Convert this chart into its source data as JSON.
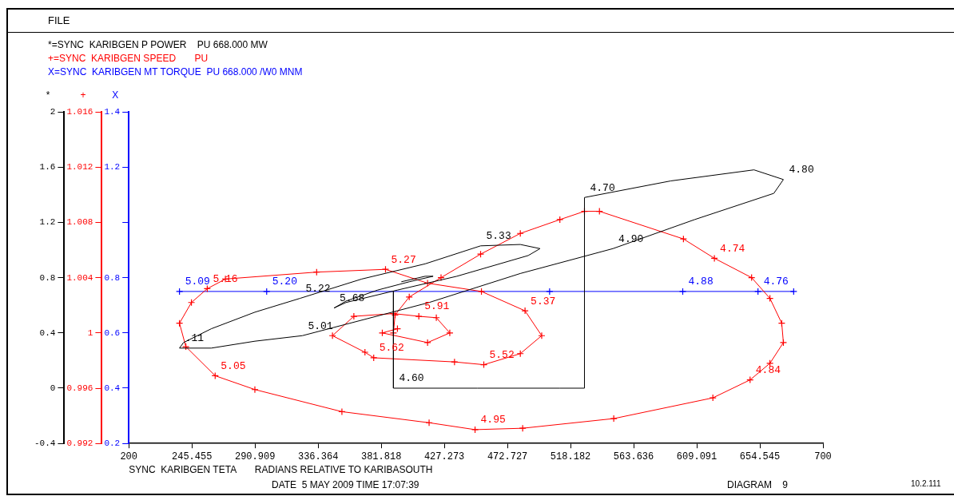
{
  "chart_data": {
    "type": "line",
    "title": "FILE",
    "xlabel": "SYNC  KARIBGEN TETA       RADIANS RELATIVE TO KARIBASOUTH",
    "ylabel": "*",
    "y2label": "+",
    "y3label": "X",
    "xlim": [
      200,
      700
    ],
    "xticks": [
      200,
      245.455,
      290.909,
      336.364,
      381.818,
      427.273,
      472.727,
      518.182,
      563.636,
      609.091,
      654.545,
      700
    ],
    "ylim": [
      -0.4,
      2
    ],
    "yticks": [
      -0.4,
      0,
      0.4,
      0.8,
      1.2,
      1.6,
      2
    ],
    "y2lim": [
      0.992,
      1.016
    ],
    "y2ticks": [
      0.992,
      0.996,
      1,
      1.004,
      1.008,
      1.012,
      1.016
    ],
    "y3lim": [
      0.2,
      1.4
    ],
    "y3ticks": [
      0.2,
      0.4,
      0.6,
      0.8,
      {
        "value": 1,
        "label": null
      },
      1.2,
      1.4
    ],
    "grid": false,
    "legend": "top left",
    "line_style": "solid",
    "series": [
      {
        "name": "*=SYNC  KARIBGEN P POWER    PU 668.000 MW",
        "color": "#000000",
        "axis": "y",
        "marker": "none",
        "x": [
          390.6,
          390.6,
          451.1,
          510.5,
          528.2,
          528.2,
          590.4,
          650.3,
          671.5,
          664.6,
          607.5,
          548.7,
          482,
          416.3,
          325,
          290.8,
          259.4,
          236.5,
          239.4,
          259.4,
          290.8,
          323.3,
          367.8,
          413.5,
          453.4,
          482,
          496.2,
          487.7,
          436.3,
          393.5,
          356.4,
          347.8,
          356.4,
          379.2,
          402,
          419.2,
          413.5,
          396.3
        ],
        "values": [
          0.7,
          0,
          0,
          0,
          0,
          1.38,
          1.5,
          1.58,
          1.51,
          1.41,
          1.22,
          1.01,
          0.83,
          0.62,
          0.38,
          0.34,
          0.29,
          0.29,
          0.33,
          0.43,
          0.55,
          0.65,
          0.79,
          0.9,
          1.03,
          1.04,
          1.01,
          0.96,
          0.81,
          0.71,
          0.62,
          0.58,
          0.63,
          0.71,
          0.77,
          0.81,
          0.81,
          0.77
        ]
      },
      {
        "name": "+=SYNC  KARIBGEN SPEED       PU",
        "color": "#ff0000",
        "axis": "y2",
        "marker": "cross",
        "x": [
          390.6,
          391.8,
          402,
          424.9,
          453.4,
          482,
          510.5,
          528.2,
          539,
          599.5,
          621.8,
          648.6,
          661.8,
          670.3,
          671.5,
          661.8,
          647.5,
          620.7,
          549.3,
          483.7,
          449.4,
          416.3,
          353.5,
          290.8,
          262.2,
          241.1,
          236.5,
          245.1,
          256.5,
          269.6,
          335.3,
          384.9,
          415.2,
          454,
          485.4,
          497.4,
          482,
          455.7,
          434.6,
          376.4,
          370.1,
          346.7,
          362.1,
          390.6,
          408.9,
          421.5,
          431.2,
          415.2,
          382.6,
          393.5
        ],
        "values": [
          1.0,
          1.0013,
          1.0026,
          1.004,
          1.0057,
          1.0072,
          1.0082,
          1.0088,
          1.0088,
          1.0068,
          1.0054,
          1.004,
          1.0025,
          1.0007,
          0.9993,
          0.9978,
          0.9966,
          0.9953,
          0.9938,
          0.9931,
          0.993,
          0.9935,
          0.9943,
          0.9959,
          0.9969,
          0.999,
          1.0007,
          1.0022,
          1.0032,
          1.0039,
          1.0044,
          1.0046,
          1.0036,
          1.003,
          1.0016,
          0.9998,
          0.9985,
          0.9977,
          0.9979,
          0.9982,
          0.9986,
          0.9998,
          1.0012,
          1.0014,
          1.0012,
          1.0011,
          1.0,
          0.9993,
          1.0,
          1.0003
        ]
      },
      {
        "name": "X=SYNC  KARIBGEN MT TORQUE  PU 668.000 /W0 MNM",
        "color": "#0000ff",
        "axis": "y3",
        "marker": "cross",
        "x": [
          236.5,
          299.3,
          503.1,
          599,
          653.2,
          678.9
        ],
        "values": [
          0.75,
          0.75,
          0.75,
          0.75,
          0.75,
          0.75
        ]
      }
    ],
    "annotations": [
      "DATE  5 MAY 2009 TIME 17:07:39",
      "DIAGRAM    9",
      "10.2.111",
      {
        "text": "4.60",
        "x": 390.6,
        "y": 0
      },
      {
        "text": "4.70",
        "x": 528.2,
        "y": 1.38
      },
      {
        "text": "4.80",
        "x": 671.5,
        "y": 1.51
      },
      {
        "text": "4.90",
        "x": 548.7,
        "y": 1.01
      },
      {
        "text": "5.01",
        "x": 325,
        "y": 0.38
      },
      {
        "text": ".11",
        "x": 236.5,
        "y": 0.29
      },
      {
        "text": "5.22",
        "x": 323.3,
        "y": 0.65
      },
      {
        "text": "5.33",
        "x": 453.4,
        "y": 1.03
      },
      {
        "text": "5.68",
        "x": 347.8,
        "y": 0.58
      },
      {
        "text": "4.74",
        "x": 621.8,
        "y": 0.94
      },
      {
        "text": "4.84",
        "x": 647.5,
        "y": 0.06
      },
      {
        "text": "4.95",
        "x": 449.4,
        "y": -0.3
      },
      {
        "text": "5.05",
        "x": 262.2,
        "y": 0.09
      },
      {
        "text": "5.16",
        "x": 256.5,
        "y": 0.72
      },
      {
        "text": "5.27",
        "x": 384.9,
        "y": 0.86
      },
      {
        "text": "5.37",
        "x": 485.4,
        "y": 0.56
      },
      {
        "text": "5.52",
        "x": 455.7,
        "y": 0.17
      },
      {
        "text": "5.62",
        "x": 376.4,
        "y": 0.22
      },
      {
        "text": "5.91",
        "x": 408.9,
        "y": 0.52
      },
      {
        "text": "5.09",
        "x": 236.5,
        "y": 0.7
      },
      {
        "text": "5.20",
        "x": 299.3,
        "y": 0.7
      },
      {
        "text": "4.88",
        "x": 599,
        "y": 0.7
      },
      {
        "text": "4.76",
        "x": 653.2,
        "y": 0.7
      }
    ]
  }
}
